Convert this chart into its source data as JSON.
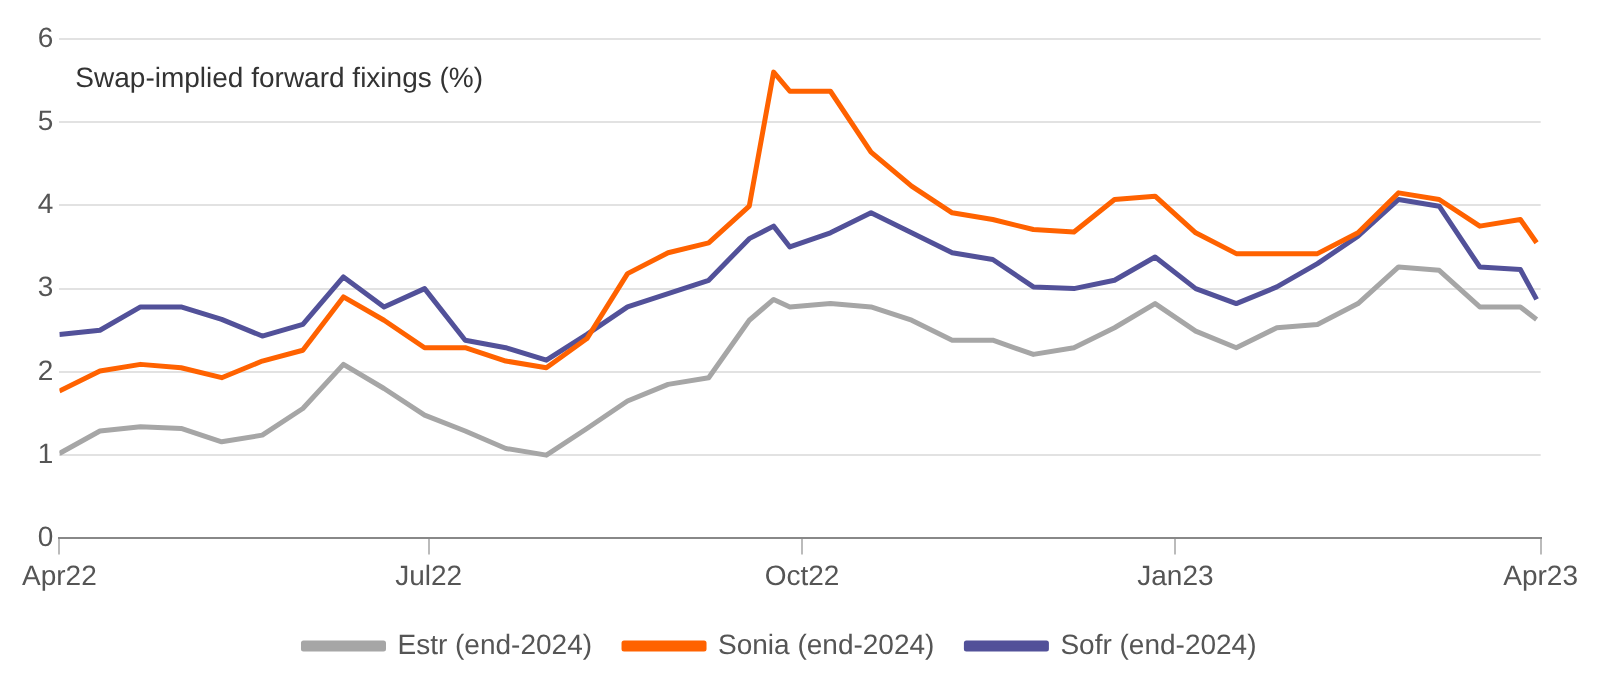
{
  "chart_data": {
    "type": "line",
    "title": "Swap-implied forward fixings (%)",
    "x": [
      "2022-04-01",
      "2022-04-11",
      "2022-04-21",
      "2022-05-01",
      "2022-05-11",
      "2022-05-21",
      "2022-05-31",
      "2022-06-10",
      "2022-06-20",
      "2022-06-30",
      "2022-07-10",
      "2022-07-20",
      "2022-07-30",
      "2022-08-09",
      "2022-08-19",
      "2022-08-29",
      "2022-09-08",
      "2022-09-18",
      "2022-09-24",
      "2022-09-28",
      "2022-10-08",
      "2022-10-18",
      "2022-10-28",
      "2022-11-07",
      "2022-11-17",
      "2022-11-27",
      "2022-12-07",
      "2022-12-17",
      "2022-12-27",
      "2023-01-06",
      "2023-01-16",
      "2023-01-26",
      "2023-02-05",
      "2023-02-15",
      "2023-02-25",
      "2023-03-07",
      "2023-03-17",
      "2023-03-27",
      "2023-03-31"
    ],
    "series": [
      {
        "name": "Estr (end-2024)",
        "color": "#a6a6a6",
        "values": [
          1.02,
          1.29,
          1.34,
          1.32,
          1.16,
          1.24,
          1.56,
          2.09,
          1.8,
          1.48,
          1.29,
          1.08,
          1.0,
          1.32,
          1.65,
          1.85,
          1.93,
          2.62,
          2.87,
          2.78,
          2.82,
          2.78,
          2.62,
          2.38,
          2.38,
          2.21,
          2.29,
          2.53,
          2.82,
          2.49,
          2.29,
          2.53,
          2.57,
          2.82,
          3.26,
          3.22,
          2.78,
          2.78,
          2.63
        ]
      },
      {
        "name": "Sonia (end-2024)",
        "color": "#ff6200",
        "values": [
          1.77,
          2.01,
          2.09,
          2.05,
          1.93,
          2.13,
          2.26,
          2.9,
          2.62,
          2.29,
          2.29,
          2.13,
          2.05,
          2.4,
          3.18,
          3.43,
          3.55,
          3.99,
          5.6,
          5.37,
          5.37,
          4.64,
          4.23,
          3.91,
          3.83,
          3.71,
          3.68,
          4.07,
          4.11,
          3.67,
          3.42,
          3.42,
          3.42,
          3.67,
          4.15,
          4.07,
          3.75,
          3.83,
          3.55
        ]
      },
      {
        "name": "Sofr (end-2024)",
        "color": "#525199",
        "values": [
          2.45,
          2.5,
          2.78,
          2.78,
          2.63,
          2.43,
          2.57,
          3.14,
          2.78,
          3.0,
          2.38,
          2.29,
          2.14,
          2.45,
          2.78,
          2.94,
          3.1,
          3.6,
          3.75,
          3.5,
          3.67,
          3.91,
          3.67,
          3.43,
          3.35,
          3.02,
          3.0,
          3.1,
          3.38,
          3.0,
          2.82,
          3.02,
          3.3,
          3.63,
          4.07,
          3.99,
          3.26,
          3.23,
          2.87
        ]
      }
    ],
    "xlim": [
      "2022-04-01",
      "2023-04-01"
    ],
    "xticks": [
      {
        "value": "2022-04-01",
        "label": "Apr22"
      },
      {
        "value": "2022-07-01",
        "label": "Jul22"
      },
      {
        "value": "2022-10-01",
        "label": "Oct22"
      },
      {
        "value": "2023-01-01",
        "label": "Jan23"
      },
      {
        "value": "2023-04-01",
        "label": "Apr23"
      }
    ],
    "ylim": [
      0,
      6
    ],
    "yticks": [
      0,
      1,
      2,
      3,
      4,
      5,
      6
    ],
    "grid": "y",
    "legend": "bottom",
    "marker": "none",
    "line_style": "solid"
  }
}
